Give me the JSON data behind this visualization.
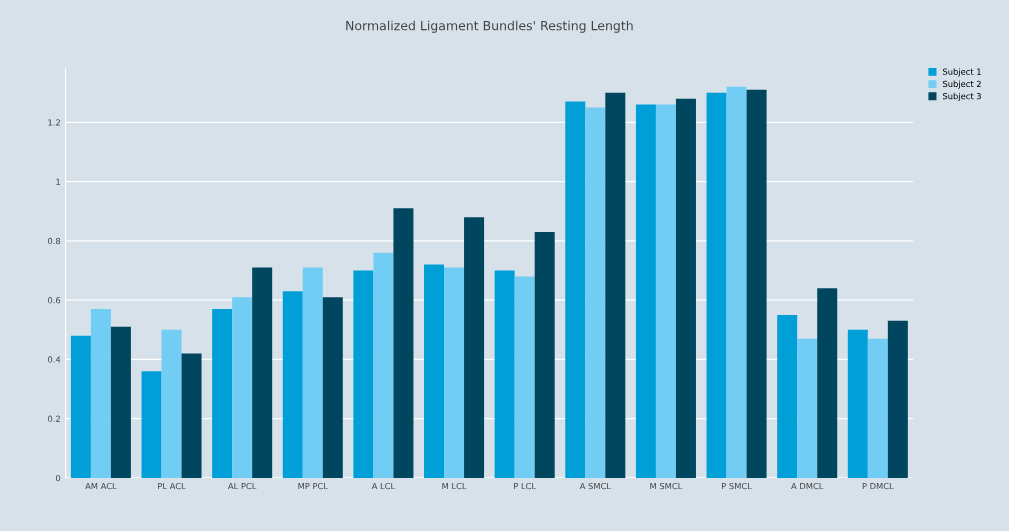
{
  "chart_data": {
    "type": "bar",
    "title": "Normalized Ligament Bundles' Resting Length",
    "categories": [
      "AM ACL",
      "PL ACL",
      "AL PCL",
      "MP PCL",
      "A LCL",
      "M LCL",
      "P LCL",
      "A SMCL",
      "M SMCL",
      "P SMCL",
      "A DMCL",
      "P DMCL"
    ],
    "series": [
      {
        "name": "Subject 1",
        "color": "#009fd8",
        "values": [
          0.48,
          0.36,
          0.57,
          0.63,
          0.7,
          0.72,
          0.7,
          1.27,
          1.26,
          1.3,
          0.55,
          0.5
        ]
      },
      {
        "name": "Subject 2",
        "color": "#72cdf4",
        "values": [
          0.57,
          0.5,
          0.61,
          0.71,
          0.76,
          0.71,
          0.68,
          1.25,
          1.26,
          1.32,
          0.47,
          0.47
        ]
      },
      {
        "name": "Subject 3",
        "color": "#00465f",
        "values": [
          0.51,
          0.42,
          0.71,
          0.61,
          0.91,
          0.88,
          0.83,
          1.3,
          1.28,
          1.31,
          0.64,
          0.53
        ]
      }
    ],
    "ylim": [
      0,
      1.38
    ],
    "yticks": [
      0,
      0.2,
      0.4,
      0.6,
      0.8,
      1,
      1.2
    ],
    "grid": "y",
    "legend": "top right"
  }
}
